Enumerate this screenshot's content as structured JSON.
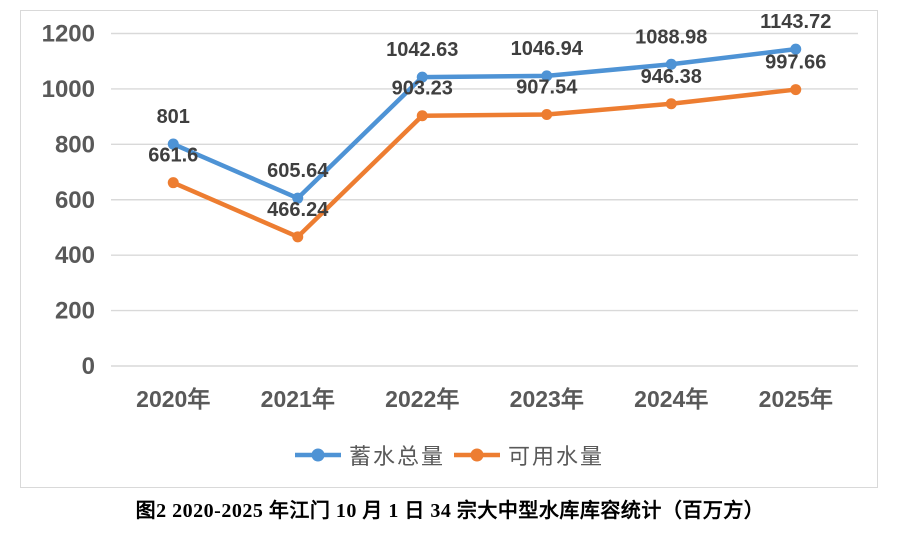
{
  "caption": "图2 2020-2025 年江门 10 月 1 日 34 宗大中型水库库容统计（百万方）",
  "chart_data": {
    "type": "line",
    "title": "",
    "xlabel": "",
    "ylabel": "",
    "categories": [
      "2020年",
      "2021年",
      "2022年",
      "2023年",
      "2024年",
      "2025年"
    ],
    "series": [
      {
        "name": "蓄水总量",
        "color": "#4E93D5",
        "values": [
          801,
          605.64,
          1042.63,
          1046.94,
          1088.98,
          1143.72
        ]
      },
      {
        "name": "可用水量",
        "color": "#ED7D31",
        "values": [
          661.6,
          466.24,
          903.23,
          907.54,
          946.38,
          997.66
        ]
      }
    ],
    "ylim": [
      0,
      1200
    ],
    "yticks": [
      0,
      200,
      400,
      600,
      800,
      1000,
      1200
    ],
    "grid": true,
    "marker": "circle",
    "legend_position": "bottom",
    "style": {
      "grid_color": "#D9D9D9",
      "frame_color": "#D9D9D9",
      "axis_text_color": "#595959",
      "data_label_color": "#3F3F3F",
      "legend_text_color": "#595959"
    }
  }
}
